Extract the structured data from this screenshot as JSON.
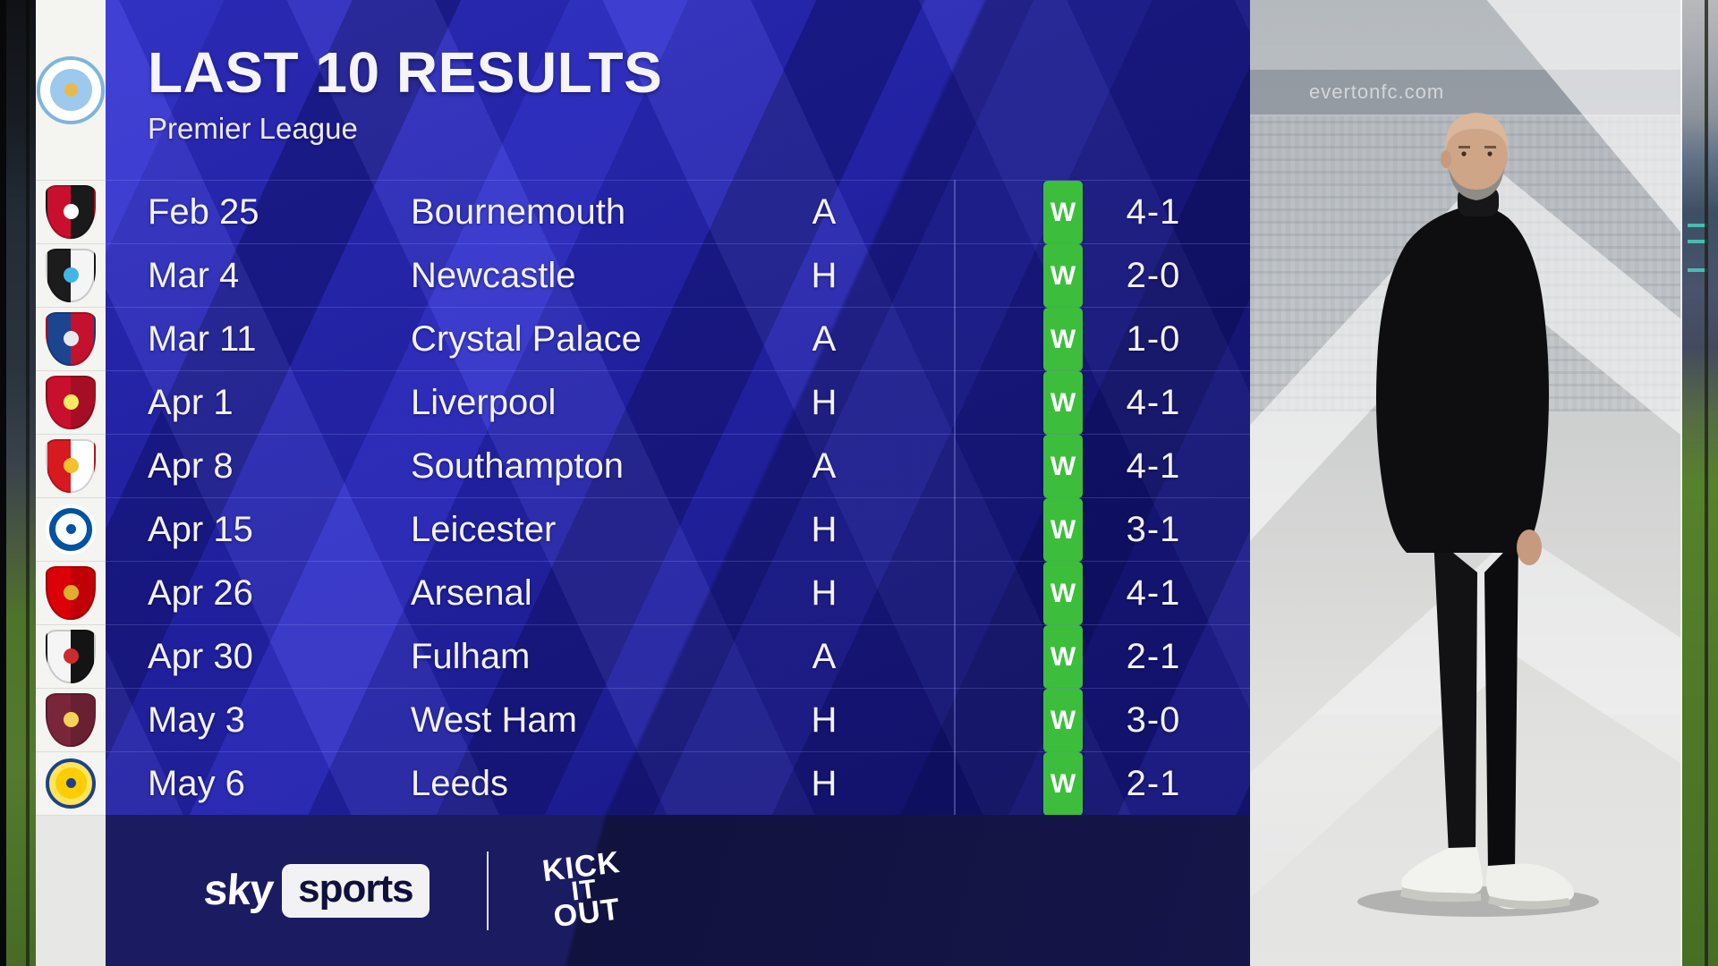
{
  "header": {
    "title": "LAST 10 RESULTS",
    "subtitle": "Premier League"
  },
  "team": {
    "name": "Manchester City",
    "badge": {
      "id": "manchester-city",
      "shape": "circle",
      "size": 76,
      "primary": "#9CC9EC",
      "secondary": "#FFFFFF",
      "accent": "#7FB4DC",
      "emblem": "#E9B949"
    }
  },
  "results": [
    {
      "date": "Feb 25",
      "opponent": "Bournemouth",
      "venue": "A",
      "outcome": "W",
      "score": "4-1",
      "badge": {
        "id": "bournemouth",
        "shape": "shield",
        "size": 56,
        "primary": "#C8102E",
        "secondary": "#1A1A1A",
        "accent": "#FFFFFF"
      }
    },
    {
      "date": "Mar 4",
      "opponent": "Newcastle",
      "venue": "H",
      "outcome": "W",
      "score": "2-0",
      "badge": {
        "id": "newcastle",
        "shape": "shield",
        "size": 56,
        "primary": "#1C1C1C",
        "secondary": "#F5F5F5",
        "accent": "#41B6E6"
      }
    },
    {
      "date": "Mar 11",
      "opponent": "Crystal Palace",
      "venue": "A",
      "outcome": "W",
      "score": "1-0",
      "badge": {
        "id": "crystal-palace",
        "shape": "shield",
        "size": 56,
        "primary": "#1B458F",
        "secondary": "#C4122E",
        "accent": "#E8E8F0"
      }
    },
    {
      "date": "Apr 1",
      "opponent": "Liverpool",
      "venue": "H",
      "outcome": "W",
      "score": "4-1",
      "badge": {
        "id": "liverpool",
        "shape": "shield",
        "size": 56,
        "primary": "#C8102E",
        "secondary": "#A50E24",
        "accent": "#F6EB61"
      }
    },
    {
      "date": "Apr 8",
      "opponent": "Southampton",
      "venue": "A",
      "outcome": "W",
      "score": "4-1",
      "badge": {
        "id": "southampton",
        "shape": "shield",
        "size": 56,
        "primary": "#D71920",
        "secondary": "#FFFFFF",
        "accent": "#F2C12E"
      }
    },
    {
      "date": "Apr 15",
      "opponent": "Leicester",
      "venue": "H",
      "outcome": "W",
      "score": "3-1",
      "badge": {
        "id": "leicester",
        "shape": "circle",
        "size": 56,
        "primary": "#FFFFFF",
        "secondary": "#0053A0",
        "accent": "#FFFFFF",
        "emblem": "#0053A0"
      }
    },
    {
      "date": "Apr 26",
      "opponent": "Arsenal",
      "venue": "H",
      "outcome": "W",
      "score": "4-1",
      "badge": {
        "id": "arsenal",
        "shape": "shield",
        "size": 56,
        "primary": "#DB0007",
        "secondary": "#C00006",
        "accent": "#DFAF2B"
      }
    },
    {
      "date": "Apr 30",
      "opponent": "Fulham",
      "venue": "A",
      "outcome": "W",
      "score": "2-1",
      "badge": {
        "id": "fulham",
        "shape": "shield",
        "size": 56,
        "primary": "#F5F5F5",
        "secondary": "#141414",
        "accent": "#CC2B2B"
      }
    },
    {
      "date": "May 3",
      "opponent": "West Ham",
      "venue": "H",
      "outcome": "W",
      "score": "3-0",
      "badge": {
        "id": "west-ham",
        "shape": "shield",
        "size": 56,
        "primary": "#7A263A",
        "secondary": "#6A2033",
        "accent": "#F3D459"
      }
    },
    {
      "date": "May 6",
      "opponent": "Leeds",
      "venue": "H",
      "outcome": "W",
      "score": "2-1",
      "badge": {
        "id": "leeds",
        "shape": "circle",
        "size": 56,
        "primary": "#FFCD00",
        "secondary": "#FFE55C",
        "accent": "#1D428A",
        "emblem": "#1D428A"
      }
    }
  ],
  "footer": {
    "sky": "sky",
    "sports": "sports",
    "kick_it_out_lines": [
      "KICK",
      "IT",
      "OUT"
    ]
  },
  "background": {
    "stand_watermark": "evertonfc.com"
  },
  "colors": {
    "win_green": "#3CBE3C",
    "panel_blue": "#2424AC",
    "panel_blue_light": "#3E3EE2",
    "panel_navy_dark": "#14145A",
    "bottom_navy": "#161650",
    "text_white": "#F1F1F9",
    "sidebar_white": "#F4F4F1"
  }
}
